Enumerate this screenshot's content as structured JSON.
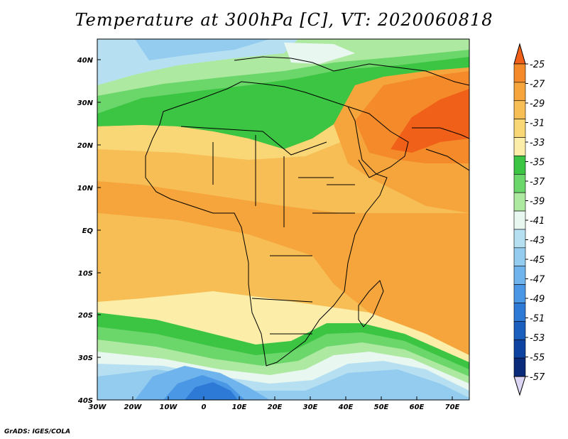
{
  "title": "Temperature at 300hPa [C], VT: 2020060818",
  "credit": "GrADS: IGES/COLA",
  "lat_labels": [
    "40N",
    "30N",
    "20N",
    "10N",
    "EQ",
    "10S",
    "20S",
    "30S",
    "40S"
  ],
  "lon_labels": [
    "30W",
    "20W",
    "10W",
    "0",
    "10E",
    "20E",
    "30E",
    "40E",
    "50E",
    "60E",
    "70E"
  ],
  "colorbar": {
    "labels": [
      "-25",
      "-27",
      "-29",
      "-31",
      "-33",
      "-35",
      "-37",
      "-39",
      "-41",
      "-43",
      "-45",
      "-47",
      "-49",
      "-51",
      "-53",
      "-55",
      "-57"
    ],
    "colors": [
      "#f06018",
      "#f48a2a",
      "#f5a53c",
      "#f7be55",
      "#f9d676",
      "#fceea8",
      "#3cc443",
      "#6bd66a",
      "#aee9a2",
      "#e8f7f0",
      "#b6e0f2",
      "#93ccef",
      "#6fb4ec",
      "#4a97e6",
      "#2d7ad6",
      "#1a5fbe",
      "#0d43a0",
      "#0a2a7a"
    ],
    "low_end_color": "#dcd6f4"
  }
}
